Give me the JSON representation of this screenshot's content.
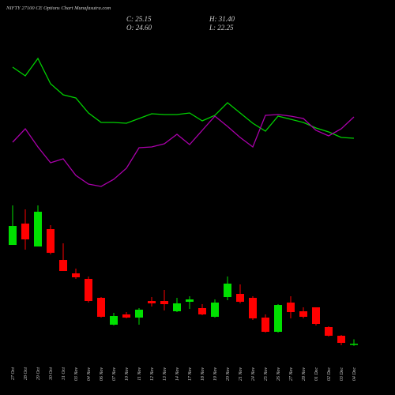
{
  "chart_data": {
    "type": "candlestick",
    "title": "NIFTY 27100 CE Options Chart Munafasutra.com",
    "ohlc_labels": {
      "close": "C: 25.15",
      "high": "H: 31.40",
      "open": "O: 24.60",
      "low": "L: 22.25"
    },
    "categories": [
      "27 Oct",
      "28 Oct",
      "29 Oct",
      "30 Oct",
      "31 Oct",
      "03 Nov",
      "04 Nov",
      "06 Nov",
      "07 Nov",
      "10 Nov",
      "11 Nov",
      "12 Nov",
      "13 Nov",
      "14 Nov",
      "17 Nov",
      "18 Nov",
      "19 Nov",
      "20 Nov",
      "21 Nov",
      "24 Nov",
      "25 Nov",
      "26 Nov",
      "27 Nov",
      "28 Nov",
      "01 Dec",
      "02 Dec",
      "03 Dec",
      "04 Dec"
    ],
    "open": [
      162.8,
      192.5,
      160.6,
      184.8,
      141.9,
      123.2,
      115.5,
      89.1,
      51.7,
      66,
      61.6,
      84.7,
      84.7,
      70.4,
      83.6,
      74.8,
      62.7,
      90.2,
      94.6,
      89.1,
      61.6,
      41.8,
      82.5,
      70.4,
      75.9,
      48.4,
      36.3,
      24.6
    ],
    "high": [
      217.8,
      212.3,
      217.8,
      190.3,
      165,
      129.8,
      118.8,
      90.2,
      68.2,
      69.3,
      74.8,
      90.2,
      100.1,
      89.1,
      91.3,
      80.3,
      86.9,
      118.8,
      107.8,
      91.3,
      66,
      80.3,
      91.3,
      75.9,
      75.9,
      49.5,
      37.4,
      31.4
    ],
    "low": [
      162.8,
      156.2,
      160.6,
      149.6,
      126.5,
      115.5,
      82.5,
      61.6,
      50.6,
      60.5,
      51.7,
      77,
      71.5,
      69.3,
      73.7,
      64.9,
      61.6,
      85.8,
      81.4,
      58.3,
      40.7,
      40.7,
      60.5,
      60.5,
      50.6,
      35.2,
      23.1,
      22.25
    ],
    "close": [
      189.2,
      170.5,
      209,
      151.8,
      126.5,
      117.7,
      84.7,
      62.7,
      63.8,
      61.6,
      72.6,
      81.4,
      80.3,
      81.4,
      86.9,
      66,
      82.5,
      108.9,
      83.6,
      60.5,
      41.8,
      79.2,
      69.3,
      62.7,
      52.8,
      36.3,
      26.4,
      25.15
    ],
    "up_color": "#00e000",
    "down_color": "#ff0000",
    "ylim": [
      0,
      300
    ],
    "y2lim": [
      0,
      100
    ],
    "series": [
      {
        "color": "#00d000",
        "axis": "y2",
        "values": [
          82.5,
          77,
          88,
          72,
          65,
          63,
          53.5,
          47.5,
          47.5,
          47,
          50,
          53,
          52.5,
          52.5,
          53.5,
          48.5,
          52,
          60,
          53.5,
          47,
          42,
          51.5,
          49.5,
          47.5,
          44,
          41.5,
          38,
          37.5
        ]
      },
      {
        "color": "#aa00aa",
        "axis": "y2",
        "values": [
          35,
          43.5,
          32,
          22,
          24.5,
          14,
          8.5,
          7,
          11.5,
          18.5,
          31.5,
          32,
          34,
          40,
          33.5,
          42.5,
          51.5,
          45,
          38,
          32,
          52,
          52.5,
          51.5,
          50,
          42.5,
          39,
          43.5,
          51
        ]
      }
    ]
  }
}
